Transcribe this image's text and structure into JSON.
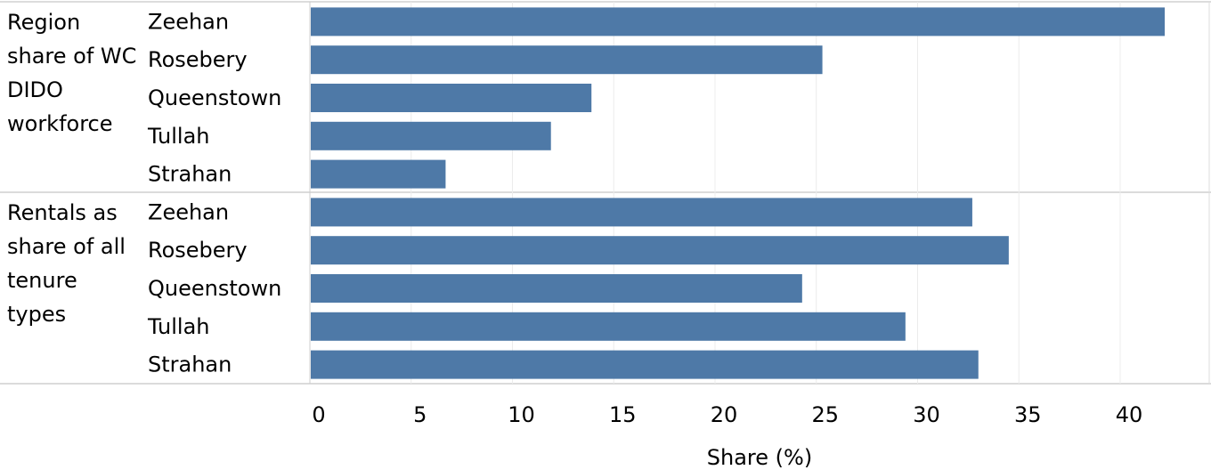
{
  "chart_data": {
    "type": "bar",
    "orientation": "horizontal",
    "xlabel": "Share (%)",
    "xlim": [
      0,
      44
    ],
    "xticks": [
      0,
      5,
      10,
      15,
      20,
      25,
      30,
      35,
      40
    ],
    "grid": true,
    "bar_color": "#4e79a7",
    "groups": [
      {
        "label": "Region share of WC DIDO workforce",
        "categories": [
          "Zeehan",
          "Rosebery",
          "Queenstown",
          "Tullah",
          "Strahan"
        ],
        "values": [
          42.2,
          25.3,
          13.9,
          11.9,
          6.7
        ]
      },
      {
        "label": "Rentals as share of all tenure types",
        "categories": [
          "Zeehan",
          "Rosebery",
          "Queenstown",
          "Tullah",
          "Strahan"
        ],
        "values": [
          32.7,
          34.5,
          24.3,
          29.4,
          33.0
        ]
      }
    ]
  }
}
